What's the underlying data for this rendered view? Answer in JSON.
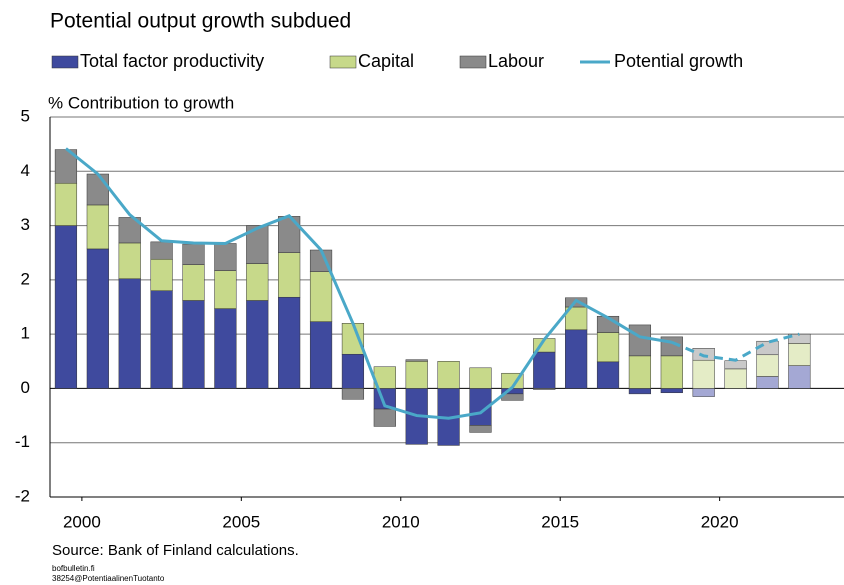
{
  "chart_data": {
    "type": "bar_line",
    "title": "Potential output growth subdued",
    "y_label": "% Contribution to growth",
    "source": "Source: Bank of Finland calculations.",
    "footnotes": [
      "bofbulletin.fi",
      "38254@PotentiaalinenTuotanto"
    ],
    "x": [
      2000,
      2001,
      2002,
      2003,
      2004,
      2005,
      2006,
      2007,
      2008,
      2009,
      2010,
      2011,
      2012,
      2013,
      2014,
      2015,
      2016,
      2017,
      2018,
      2019,
      2020,
      2021,
      2022,
      2023
    ],
    "xlim": [
      1999.5,
      2023.5
    ],
    "xticks": [
      2000,
      2005,
      2010,
      2015,
      2020
    ],
    "ylim": [
      -2,
      5
    ],
    "yticks": [
      -2,
      -1,
      0,
      1,
      2,
      3,
      4,
      5
    ],
    "grid": true,
    "projection_from": 2020,
    "series": [
      {
        "name": "Total factor productivity",
        "kind": "bar",
        "color": "#3f4a9e",
        "projection_color": "#a4a8d4",
        "values": [
          3.0,
          2.57,
          2.02,
          1.8,
          1.62,
          1.47,
          1.62,
          1.68,
          1.23,
          0.63,
          -0.38,
          -1.03,
          -1.05,
          -0.68,
          -0.1,
          0.67,
          1.08,
          0.49,
          -0.1,
          -0.08,
          -0.15,
          0.0,
          0.22,
          0.42
        ]
      },
      {
        "name": "Capital",
        "kind": "bar",
        "color": "#c7d98a",
        "projection_color": "#e4ecc6",
        "values": [
          0.78,
          0.81,
          0.66,
          0.58,
          0.66,
          0.7,
          0.68,
          0.82,
          0.92,
          0.57,
          0.4,
          0.5,
          0.5,
          0.38,
          0.28,
          0.25,
          0.42,
          0.54,
          0.6,
          0.6,
          0.52,
          0.36,
          0.4,
          0.41
        ]
      },
      {
        "name": "Labour",
        "kind": "bar",
        "color": "#8a8a8a",
        "projection_color": "#c9c9c9",
        "values": [
          0.62,
          0.57,
          0.47,
          0.32,
          0.38,
          0.5,
          0.7,
          0.67,
          0.4,
          -0.2,
          -0.32,
          0.03,
          0.0,
          -0.13,
          -0.12,
          -0.02,
          0.17,
          0.3,
          0.57,
          0.35,
          0.22,
          0.15,
          0.25,
          0.17
        ]
      },
      {
        "name": "Potential growth",
        "kind": "line",
        "color": "#4aa8c8",
        "values": [
          4.42,
          3.95,
          3.2,
          2.72,
          2.68,
          2.67,
          2.95,
          3.18,
          2.55,
          1.2,
          -0.32,
          -0.5,
          -0.55,
          -0.45,
          0.02,
          0.9,
          1.62,
          1.3,
          0.95,
          0.85,
          0.6,
          0.52,
          0.85,
          1.0
        ]
      }
    ]
  }
}
